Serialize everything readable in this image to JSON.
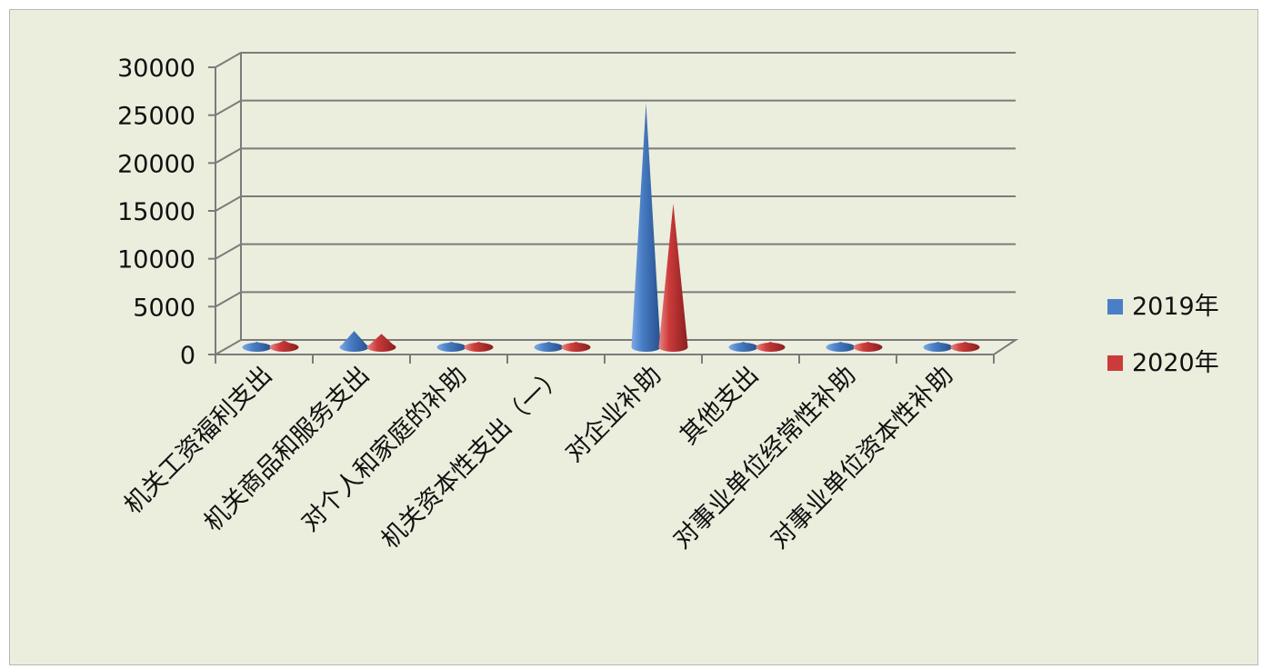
{
  "chart_data": {
    "type": "bar",
    "shape": "cone",
    "categories": [
      "机关工资福利支出",
      "机关商品和服务支出",
      "对个人和家庭的补助",
      "机关资本性支出（一）",
      "对企业补助",
      "其他支出",
      "对事业单位经常性补助",
      "对事业单位资本性补助"
    ],
    "series": [
      {
        "name": "2019年",
        "color": "#4a7fc7",
        "values": [
          300,
          1700,
          80,
          60,
          25500,
          150,
          90,
          70
        ]
      },
      {
        "name": "2020年",
        "color": "#cc3b3b",
        "values": [
          700,
          1400,
          90,
          70,
          15000,
          350,
          100,
          80
        ]
      }
    ],
    "y_ticks": [
      "0",
      "5000",
      "10000",
      "15000",
      "20000",
      "25000",
      "30000"
    ],
    "ylim": [
      0,
      30000
    ],
    "grid": true,
    "legend_position": "right"
  }
}
